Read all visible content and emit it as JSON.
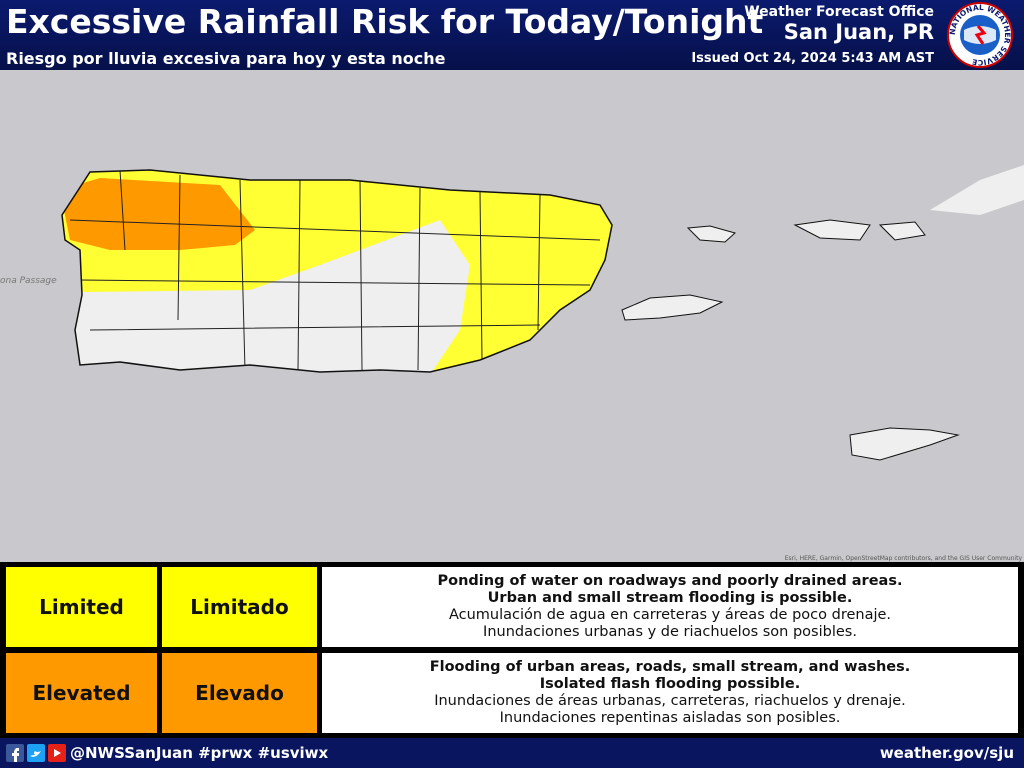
{
  "header": {
    "title": "Excessive Rainfall Risk for Today/Tonight",
    "subtitle": "Riesgo por lluvia excesiva para hoy y esta noche",
    "office": "Weather Forecast Office",
    "location": "San Juan, PR",
    "issued": "Issued Oct 24, 2024 5:43 AM AST",
    "logo_text": "NATIONAL WEATHER SERVICE"
  },
  "map": {
    "label": "ona Passage",
    "attribution": "Esri, HERE, Garmin, OpenStreetMap contributors, and the GIS User Community"
  },
  "legend": [
    {
      "english": "Limited",
      "spanish": "Limitado",
      "bold": [
        "Ponding of water on roadways and poorly drained areas.",
        "Urban and small stream flooding is possible."
      ],
      "regular": [
        "Acumulación de agua en carreteras y áreas de poco drenaje.",
        "Inundaciones urbanas y de riachuelos son posibles."
      ]
    },
    {
      "english": "Elevated",
      "spanish": "Elevado",
      "bold": [
        "Flooding of urban areas, roads, small stream, and washes.",
        "Isolated flash flooding possible."
      ],
      "regular": [
        "Inundaciones de áreas urbanas, carreteras, riachuelos y drenaje.",
        "Inundaciones repentinas aisladas son posibles."
      ]
    }
  ],
  "footer": {
    "social": "@NWSSanJuan #prwx #usviwx",
    "url": "weather.gov/sju"
  }
}
